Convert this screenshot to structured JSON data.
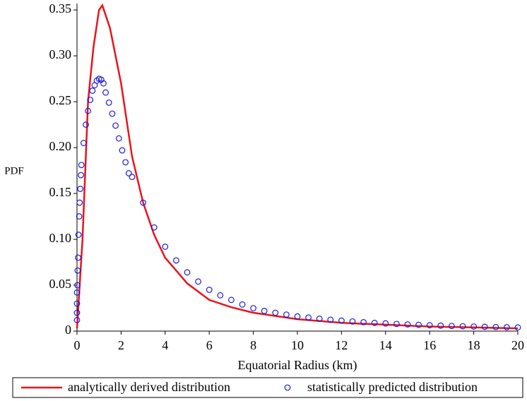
{
  "chart_data": {
    "type": "line+scatter",
    "xlabel": "Equatorial Radius (km)",
    "ylabel": "PDF",
    "xlim": [
      0,
      20
    ],
    "ylim": [
      0,
      0.357
    ],
    "xticks": [
      0,
      2,
      4,
      6,
      8,
      10,
      12,
      14,
      16,
      18,
      20
    ],
    "yticks": [
      0,
      0.05,
      {
        "value": 0.1,
        "label": "0.10"
      },
      0.15,
      {
        "value": 0.2,
        "label": "0.20"
      },
      0.25,
      {
        "value": 0.3,
        "label": "0.30"
      },
      0.35
    ],
    "series": [
      {
        "name": "analytically derived distribution",
        "type": "line",
        "color": "#e8141b",
        "x": [
          0,
          0.25,
          0.5,
          0.75,
          1,
          1.15,
          1.5,
          2,
          2.5,
          3,
          3.5,
          4,
          5,
          6,
          7,
          8,
          10,
          12,
          14,
          16,
          18,
          20
        ],
        "values": [
          0.003,
          0.1,
          0.25,
          0.31,
          0.35,
          0.355,
          0.33,
          0.27,
          0.19,
          0.14,
          0.105,
          0.08,
          0.052,
          0.034,
          0.026,
          0.02,
          0.013,
          0.009,
          0.007,
          0.005,
          0.004,
          0.003
        ]
      },
      {
        "name": "statistically predicted distribution",
        "type": "scatter",
        "color": "#1a1adc",
        "x": [
          0,
          0,
          0,
          0,
          0.02,
          0.03,
          0.05,
          0.07,
          0.1,
          0.12,
          0.15,
          0.18,
          0.2,
          0.3,
          0.4,
          0.5,
          0.6,
          0.7,
          0.8,
          0.9,
          1.0,
          1.1,
          1.2,
          1.3,
          1.45,
          1.6,
          1.75,
          1.9,
          2.05,
          2.2,
          2.35,
          2.5,
          3,
          3.5,
          4,
          4.5,
          5,
          5.5,
          6,
          6.5,
          7,
          7.5,
          8,
          8.5,
          9,
          9.5,
          10,
          10.5,
          11,
          11.5,
          12,
          12.5,
          13,
          13.5,
          14,
          14.5,
          15,
          15.5,
          16,
          16.5,
          17,
          17.5,
          18,
          18.5,
          19,
          19.5,
          20
        ],
        "values": [
          0.012,
          0.02,
          0.03,
          0.042,
          0.05,
          0.066,
          0.08,
          0.105,
          0.125,
          0.14,
          0.155,
          0.17,
          0.181,
          0.205,
          0.225,
          0.24,
          0.252,
          0.262,
          0.268,
          0.273,
          0.275,
          0.274,
          0.27,
          0.26,
          0.249,
          0.237,
          0.224,
          0.21,
          0.197,
          0.184,
          0.172,
          0.168,
          0.14,
          0.113,
          0.092,
          0.077,
          0.064,
          0.054,
          0.045,
          0.039,
          0.034,
          0.029,
          0.025,
          0.022,
          0.02,
          0.018,
          0.016,
          0.0148,
          0.0135,
          0.0124,
          0.0114,
          0.0105,
          0.0097,
          0.009,
          0.0084,
          0.0078,
          0.0073,
          0.0068,
          0.0064,
          0.006,
          0.0056,
          0.0053,
          0.005,
          0.0047,
          0.0044,
          0.0042,
          0.004
        ]
      }
    ]
  }
}
